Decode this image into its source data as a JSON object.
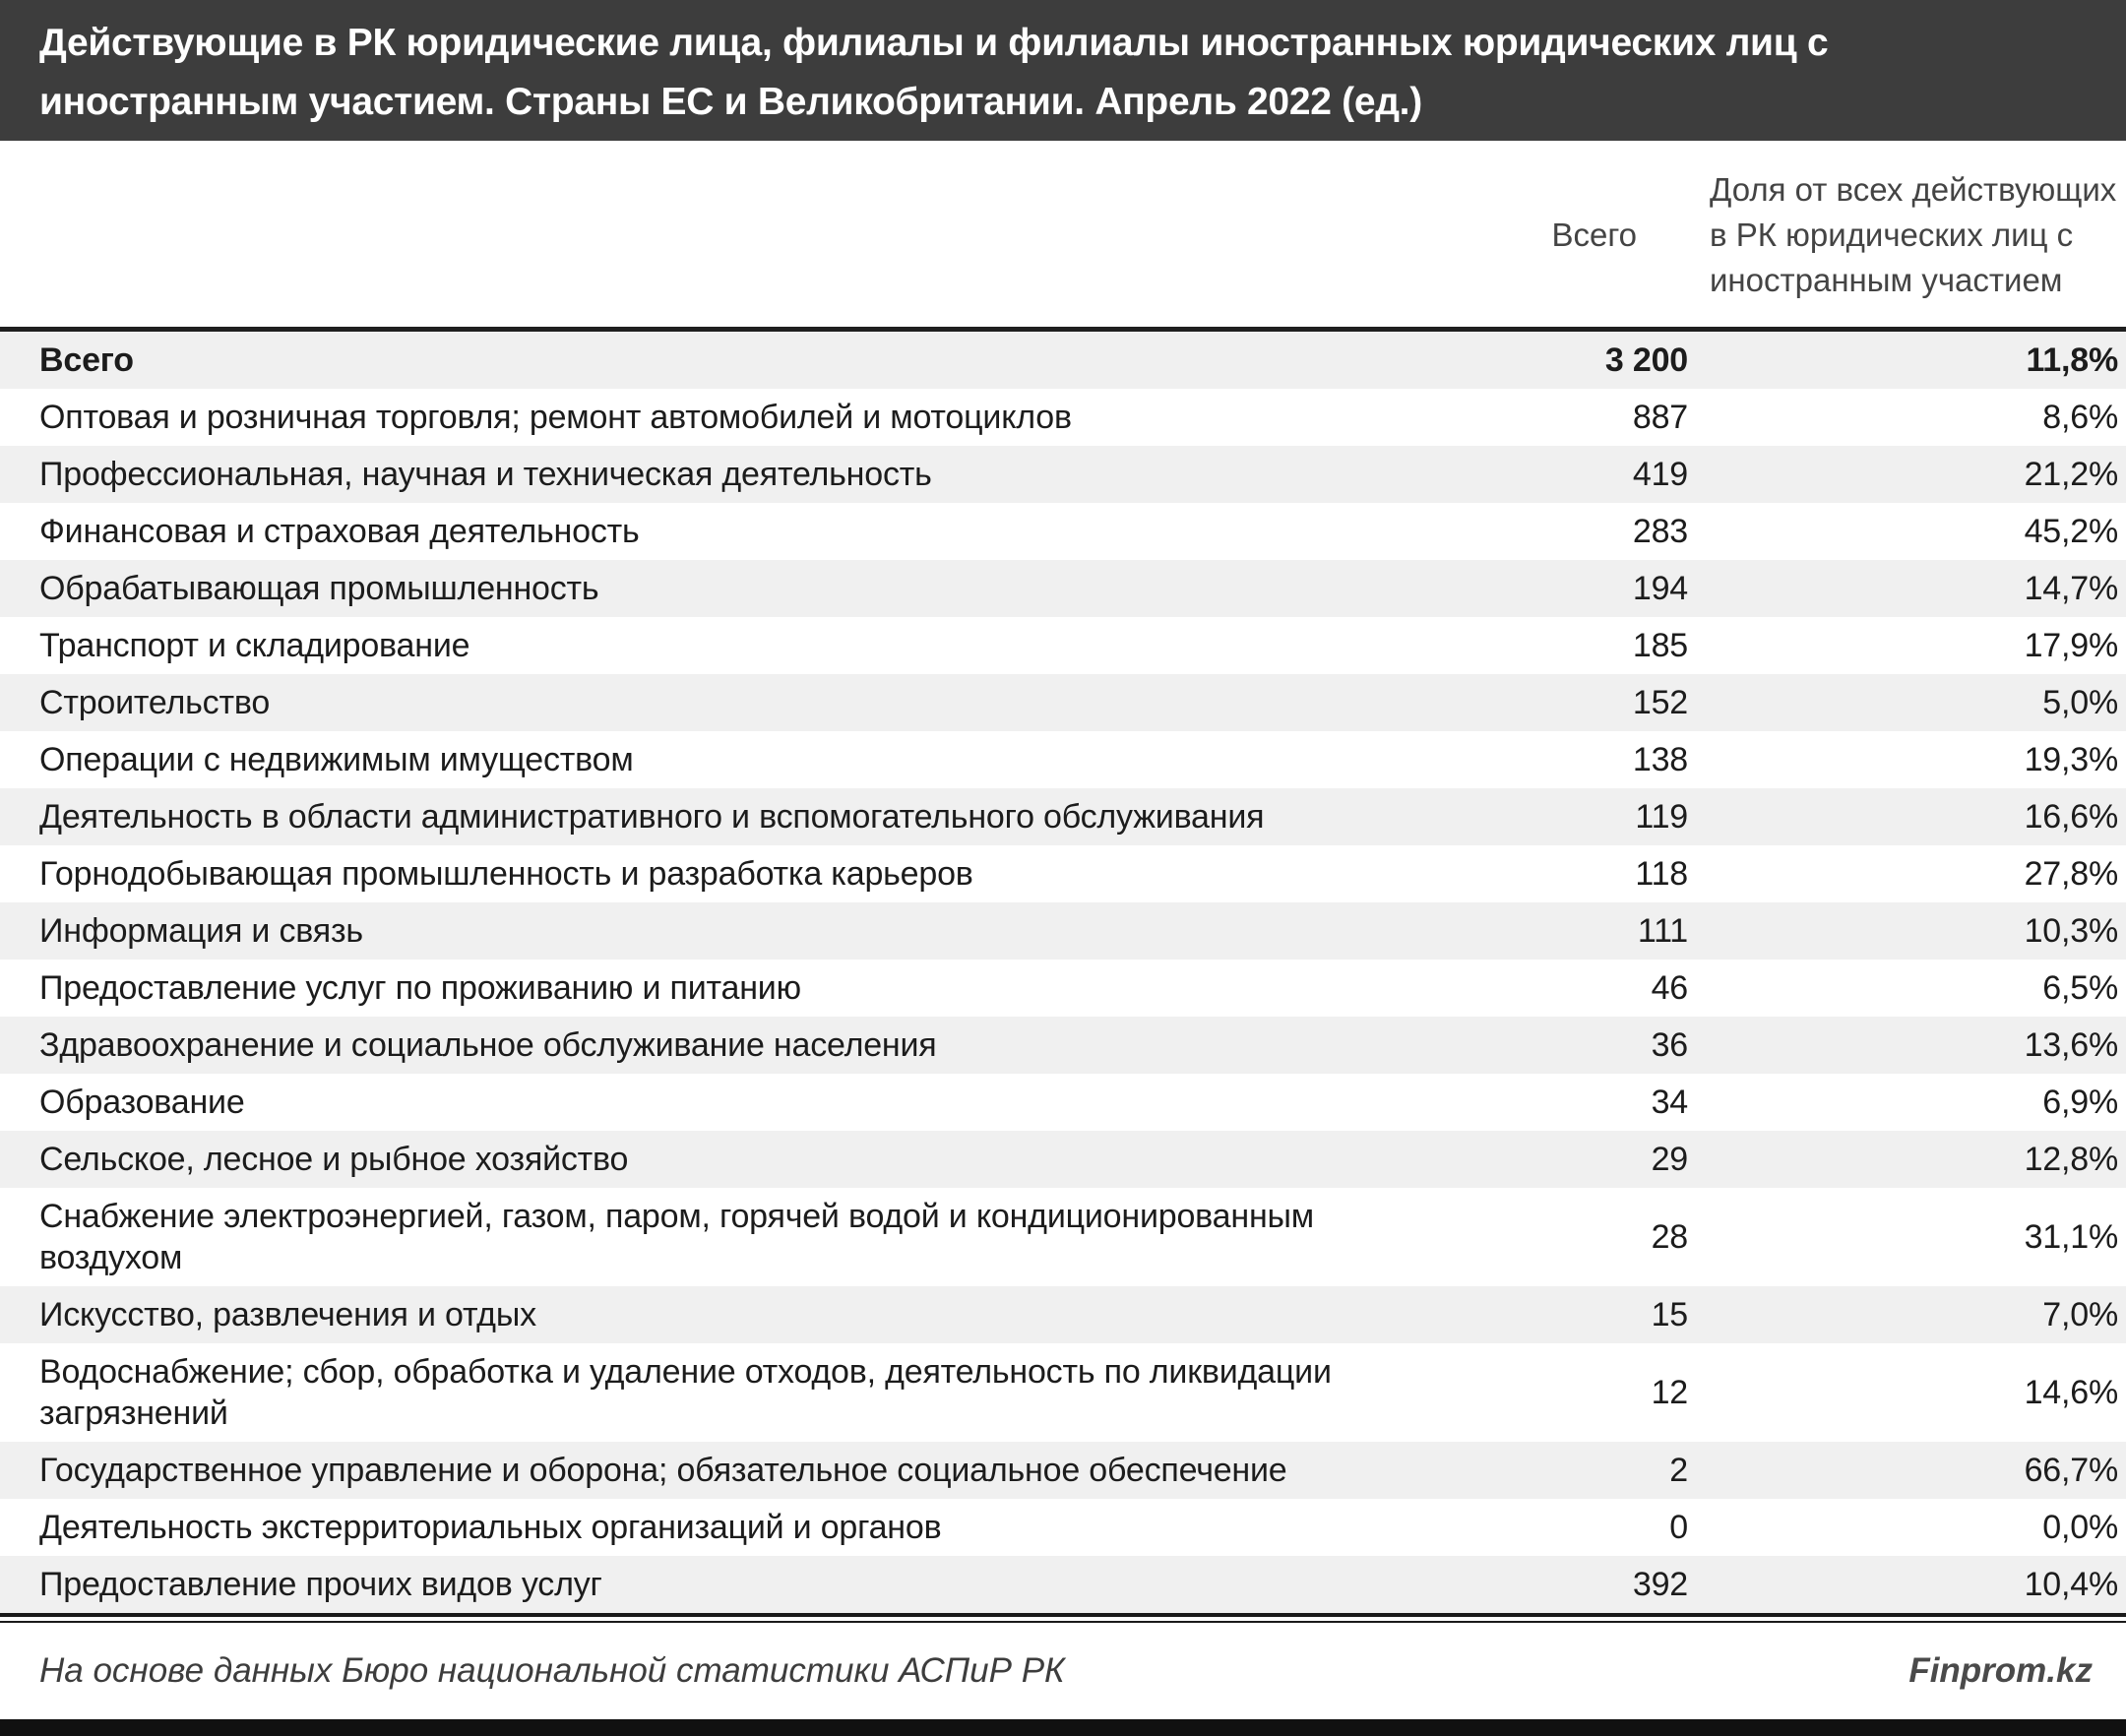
{
  "chart_data": {
    "type": "table",
    "title": "Действующие в РК юридические лица, филиалы и филиалы иностранных юридических лиц с иностранным участием. Страны ЕС и Великобритании. Апрель 2022 (ед.)",
    "columns": {
      "category": "",
      "total": "Всего",
      "share": "Доля от всех действующих в РК юридических лиц с иностранным участием"
    },
    "rows": [
      {
        "name": "Всего",
        "total": "3 200",
        "share": "11,8%"
      },
      {
        "name": "Оптовая и розничная торговля; ремонт автомобилей и мотоциклов",
        "total": "887",
        "share": "8,6%"
      },
      {
        "name": "Профессиональная, научная и техническая деятельность",
        "total": "419",
        "share": "21,2%"
      },
      {
        "name": "Финансовая и страховая деятельность",
        "total": "283",
        "share": "45,2%"
      },
      {
        "name": "Обрабатывающая промышленность",
        "total": "194",
        "share": "14,7%"
      },
      {
        "name": "Транспорт и складирование",
        "total": "185",
        "share": "17,9%"
      },
      {
        "name": "Строительство",
        "total": "152",
        "share": "5,0%"
      },
      {
        "name": "Операции с недвижимым имуществом",
        "total": "138",
        "share": "19,3%"
      },
      {
        "name": "Деятельность в области административного и вспомогательного обслуживания",
        "total": "119",
        "share": "16,6%"
      },
      {
        "name": "Горнодобывающая промышленность и разработка карьеров",
        "total": "118",
        "share": "27,8%"
      },
      {
        "name": "Информация и связь",
        "total": "111",
        "share": "10,3%"
      },
      {
        "name": "Предоставление услуг по проживанию и питанию",
        "total": "46",
        "share": "6,5%"
      },
      {
        "name": "Здравоохранение и социальное обслуживание населения",
        "total": "36",
        "share": "13,6%"
      },
      {
        "name": "Образование",
        "total": "34",
        "share": "6,9%"
      },
      {
        "name": "Сельское, лесное и рыбное хозяйство",
        "total": "29",
        "share": "12,8%"
      },
      {
        "name": "Снабжение электроэнергией, газом, паром, горячей водой и кондиционированным воздухом",
        "total": "28",
        "share": "31,1%"
      },
      {
        "name": "Искусство, развлечения и отдых",
        "total": "15",
        "share": "7,0%"
      },
      {
        "name": "Водоснабжение; сбор, обработка и удаление отходов, деятельность по ликвидации загрязнений",
        "total": "12",
        "share": "14,6%"
      },
      {
        "name": "Государственное управление и оборона; обязательное социальное обеспечение",
        "total": "2",
        "share": "66,7%"
      },
      {
        "name": "Деятельность экстерриториальных организаций и органов",
        "total": "0",
        "share": "0,0%"
      },
      {
        "name": "Предоставление прочих видов услуг",
        "total": "392",
        "share": "10,4%"
      }
    ],
    "layout": {
      "grid": "off",
      "legend": "none",
      "row_striping": "odd-rows-gray"
    }
  },
  "footer": {
    "source": "На основе данных Бюро национальной статистики АСПиР РК",
    "brand": "Finprom.kz"
  },
  "colors": {
    "title_bg": "#3d3d3d",
    "title_text": "#ffffff",
    "alt_row_bg": "#f0f0f0",
    "body_text": "#1c1c1c",
    "header_text": "#444444",
    "border": "#1a1a1a",
    "bottom_bar": "#111111"
  }
}
